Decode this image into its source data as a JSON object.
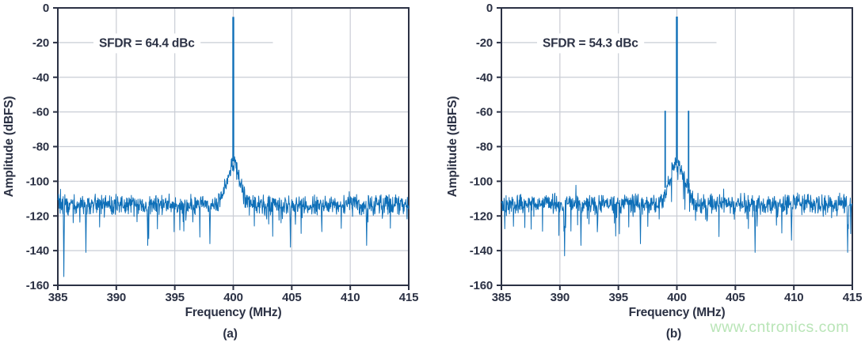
{
  "page": {
    "background": "#ffffff",
    "watermark": {
      "text": "www.cntronics.com",
      "color": "#b9e5b7"
    }
  },
  "style": {
    "line_color": "#0e6fb8",
    "axis_color": "#2b3144",
    "grid_color": "#c9cdd5",
    "text_color": "#2b3144",
    "annotation_bg": "#ffffff"
  },
  "chart_data": [
    {
      "type": "line",
      "panel": "a",
      "caption": "(a)",
      "annotation": "SFDR = 64.4 dBc",
      "xlabel": "Frequency (MHz)",
      "ylabel": "Amplitude (dBFS)",
      "xlim": [
        385,
        415
      ],
      "ylim": [
        -160,
        0
      ],
      "x_tick_values": [
        385,
        390,
        395,
        400,
        405,
        410,
        415
      ],
      "x_tick_labels": [
        "385",
        "390",
        "395",
        "400",
        "405",
        "410",
        "415"
      ],
      "y_tick_values": [
        0,
        -20,
        -40,
        -60,
        -80,
        -100,
        -120,
        -140,
        -160
      ],
      "y_tick_labels": [
        "0",
        "-20",
        "-40",
        "-60",
        "-80",
        "-100",
        "-120",
        "-140",
        "-160"
      ],
      "grid": true,
      "legend": "none",
      "carrier": {
        "freq_mhz": 400,
        "level_dbfs": -5.2
      },
      "spurs": [],
      "noise_floor": {
        "mean_dbfs": -113.5,
        "spread_db": 6.5,
        "skirt_center_mhz": 400,
        "skirt_sigma_mhz": 0.52,
        "skirt_peak_dbfs": -89
      },
      "deep_dips": [
        [
          385.5,
          -155
        ],
        [
          387.4,
          -141
        ],
        [
          392.7,
          -137
        ],
        [
          398.0,
          -136
        ],
        [
          404.9,
          -138
        ],
        [
          411.4,
          -137
        ]
      ],
      "seed": 1137
    },
    {
      "type": "line",
      "panel": "b",
      "caption": "(b)",
      "annotation": "SFDR = 54.3 dBc",
      "xlabel": "Frequency (MHz)",
      "ylabel": "Amplitude (dBFS)",
      "xlim": [
        385,
        415
      ],
      "ylim": [
        -160,
        0
      ],
      "x_tick_values": [
        385,
        390,
        395,
        400,
        405,
        410,
        415
      ],
      "x_tick_labels": [
        "385",
        "390",
        "395",
        "400",
        "405",
        "410",
        "415"
      ],
      "y_tick_values": [
        0,
        -20,
        -40,
        -60,
        -80,
        -100,
        -120,
        -140,
        -160
      ],
      "y_tick_labels": [
        "0",
        "-20",
        "-40",
        "-60",
        "-80",
        "-100",
        "-120",
        "-140",
        "-160"
      ],
      "grid": true,
      "legend": "none",
      "carrier": {
        "freq_mhz": 400,
        "level_dbfs": -5.0
      },
      "spurs": [
        {
          "freq_mhz": 399.0,
          "level_dbfs": -59.3
        },
        {
          "freq_mhz": 401.0,
          "level_dbfs": -59.3
        }
      ],
      "noise_floor": {
        "mean_dbfs": -113,
        "spread_db": 6.5,
        "skirt_center_mhz": 400,
        "skirt_sigma_mhz": 0.62,
        "skirt_peak_dbfs": -90
      },
      "deep_dips": [
        [
          390.4,
          -143
        ],
        [
          391.8,
          -137
        ],
        [
          396.9,
          -136
        ],
        [
          406.7,
          -141
        ],
        [
          409.8,
          -134
        ],
        [
          414.6,
          -141
        ]
      ],
      "seed": 4241
    }
  ]
}
